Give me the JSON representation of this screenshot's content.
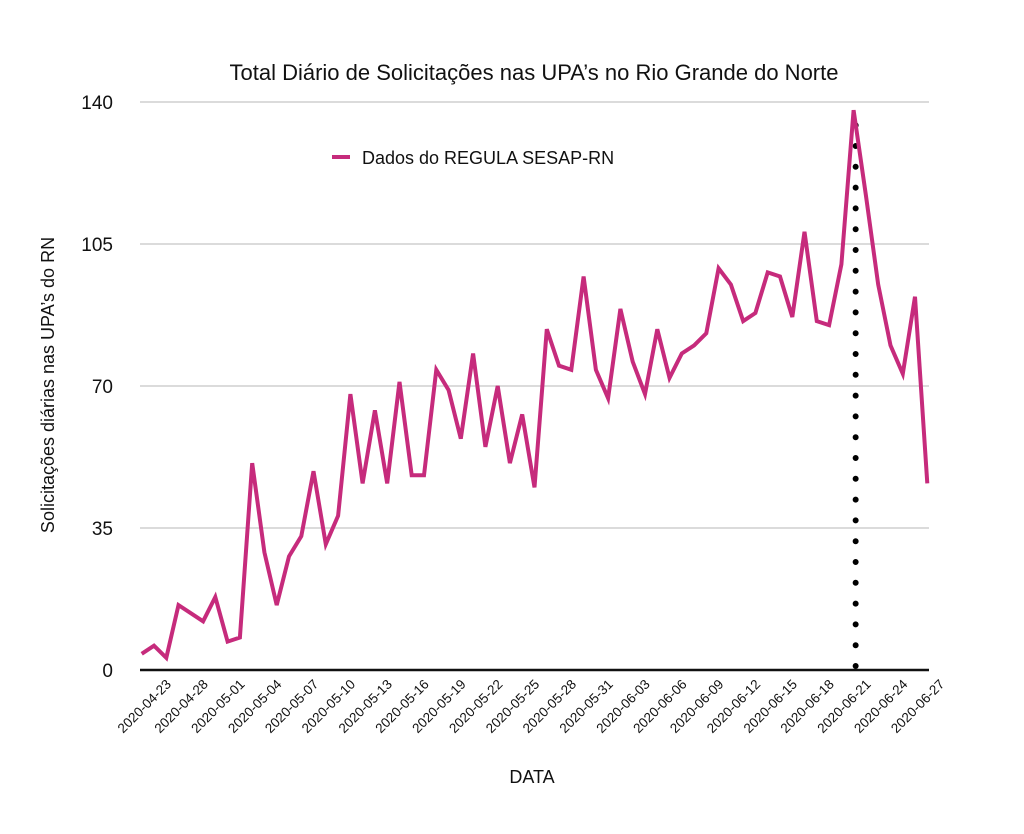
{
  "chart_data": {
    "type": "line",
    "title": "Total Diário de Solicitações nas UPA’s no Rio Grande do Norte",
    "xlabel": "DATA",
    "ylabel": "Solicitações diárias nas UPA’s do RN",
    "ylim": [
      0,
      140
    ],
    "yticks": [
      0,
      35,
      70,
      105,
      140
    ],
    "grid": true,
    "legend_position": "top-center",
    "x_tick_labels": [
      "2020-04-23",
      "2020-04-28",
      "2020-05-01",
      "2020-05-04",
      "2020-05-07",
      "2020-05-10",
      "2020-05-13",
      "2020-05-16",
      "2020-05-19",
      "2020-05-22",
      "2020-05-25",
      "2020-05-28",
      "2020-05-31",
      "2020-06-03",
      "2020-06-06",
      "2020-06-09",
      "2020-06-12",
      "2020-06-15",
      "2020-06-18",
      "2020-06-21",
      "2020-06-24",
      "2020-06-27"
    ],
    "series": [
      {
        "name": "Dados do REGULA SESAP-RN",
        "color": "#c62b7c",
        "values": [
          4,
          6,
          3,
          16,
          14,
          12,
          18,
          7,
          8,
          51,
          29,
          16,
          28,
          33,
          49,
          31,
          38,
          68,
          46,
          64,
          46,
          71,
          48,
          48,
          74,
          69,
          57,
          78,
          55,
          70,
          51,
          63,
          45,
          84,
          75,
          74,
          97,
          74,
          67,
          89,
          76,
          68,
          84,
          72,
          78,
          80,
          83,
          99,
          95,
          86,
          88,
          98,
          97,
          87,
          108,
          86,
          85,
          100,
          138,
          117,
          95,
          80,
          73,
          92,
          46
        ]
      }
    ],
    "annotation": {
      "type": "vertical-dotted-line",
      "at": "2020-06-21",
      "color": "#000000"
    }
  }
}
